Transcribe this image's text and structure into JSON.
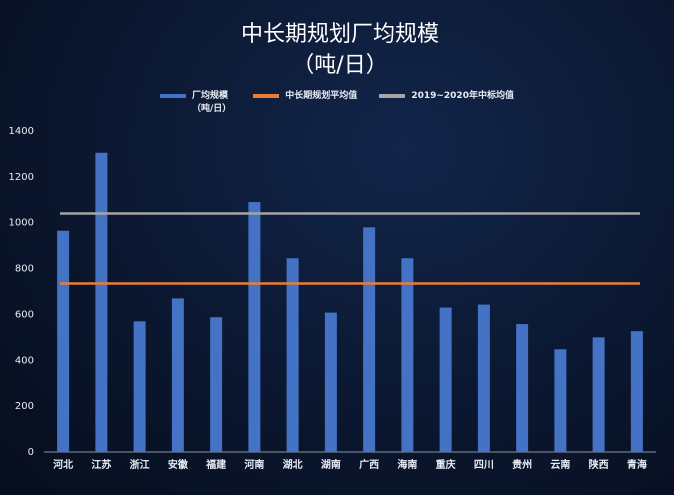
{
  "chart_data": {
    "type": "bar",
    "title": "中长期规划厂均规模",
    "subtitle": "（吨/日）",
    "categories": [
      "河北",
      "江苏",
      "浙江",
      "安徽",
      "福建",
      "河南",
      "湖北",
      "湖南",
      "广西",
      "海南",
      "重庆",
      "四川",
      "贵州",
      "云南",
      "陕西",
      "青海"
    ],
    "series": [
      {
        "name": "厂均规模\n（吨/日）",
        "color": "#4472c4",
        "values": [
          965,
          1305,
          570,
          670,
          588,
          1090,
          845,
          608,
          980,
          845,
          630,
          643,
          558,
          448,
          500,
          527
        ]
      },
      {
        "name": "中长期规划平均值",
        "color": "#ed7d31",
        "value": 735
      },
      {
        "name": "2019~2020年中标均值",
        "color": "#a5a5a5",
        "value": 1040
      }
    ],
    "ylim": [
      0,
      1400
    ],
    "yticks": [
      0,
      200,
      400,
      600,
      800,
      1000,
      1200,
      1400
    ],
    "grid": false
  }
}
